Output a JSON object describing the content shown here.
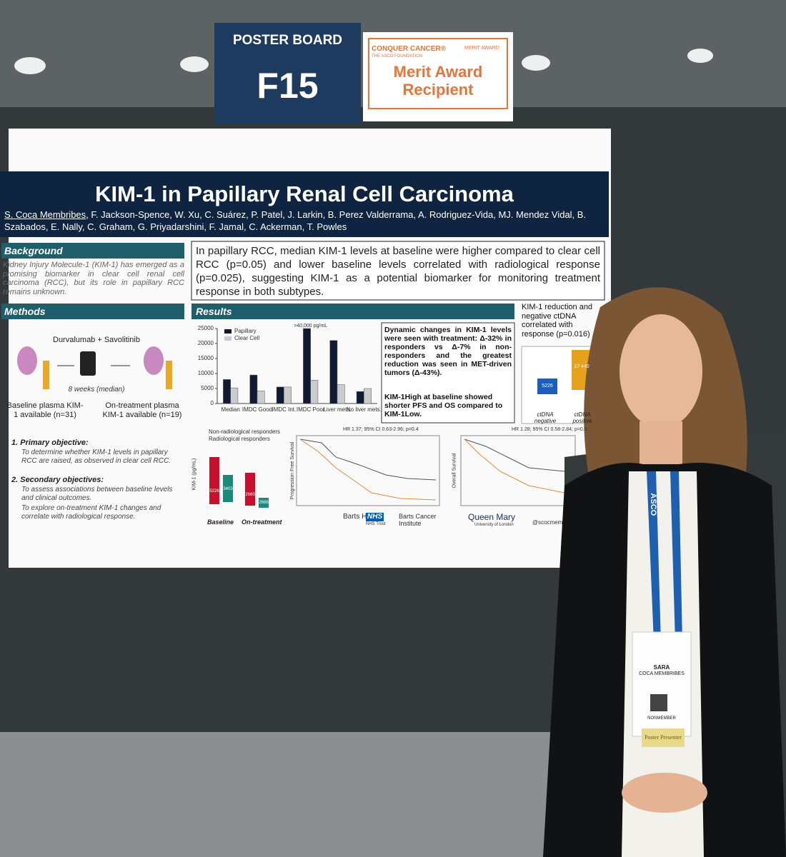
{
  "board": {
    "label": "POSTER BOARD",
    "id": "F15"
  },
  "award": {
    "org": "CONQUER CANCER®",
    "foundation": "THE ASCO FOUNDATION",
    "tag": "MERIT AWARD",
    "title": "Merit Award Recipient"
  },
  "poster": {
    "title": "KIM-1 in Papillary Renal Cell Carcinoma",
    "authors_lead": "S. Coca Membribes",
    "authors": ", F. Jackson-Spence, W. Xu, C. Suárez, P. Patel, J. Larkin, B. Perez Valderrama, A. Rodriguez-Vida, MJ. Mendez Vidal, B. Szabados, E. Nally, C. Graham, G. Priyadarshini, F. Jamal, C. Ackerman, T. Powles",
    "background": {
      "heading": "Background",
      "text": "Kidney Injury Molecule-1 (KIM-1) has emerged as a promising biomarker in clear cell renal cell carcinoma (RCC), but its role in papillary RCC remains unknown."
    },
    "summary": "In papillary RCC, median KIM-1 levels at baseline were higher compared to clear cell RCC (p=0.05) and lower baseline levels correlated with radiological response (p=0.025), suggesting KIM-1 as a potential biomarker for monitoring treatment response in both subtypes.",
    "methods": {
      "heading": "Methods",
      "drug": "Durvalumab + Savolitinib",
      "duration": "8 weeks (median)",
      "baseline": "Baseline plasma KIM-1 available (n=31)",
      "on_treatment": "On-treatment plasma KIM-1 available (n=19)",
      "primary_heading": "1. Primary objective:",
      "primary": "To determine whether KIM-1 levels in papillary RCC are raised, as observed in clear cell RCC.",
      "secondary_heading": "2. Secondary objectives:",
      "secondary": [
        "To assess associations between baseline levels and clinical outcomes.",
        "To explore on-treatment KIM-1 changes and correlate with radiological response."
      ]
    },
    "results": {
      "heading": "Results",
      "chart": {
        "type": "bar",
        "annotation": ">40,000 pg/mL",
        "categories": [
          "Median",
          "IMDC Good",
          "IMDC Int.",
          "IMDC Poor",
          "Liver mets.",
          "No liver mets."
        ],
        "series": [
          {
            "name": "Papillary",
            "color": "#111a33",
            "values": [
              8000,
              9500,
              5500,
              25000,
              21000,
              4000
            ]
          },
          {
            "name": "Clear Cell",
            "color": "#c9ccce",
            "values": [
              5200,
              4200,
              5500,
              7800,
              6300,
              5000
            ]
          }
        ],
        "ylim": [
          0,
          25000
        ],
        "yticks": [
          0,
          5000,
          10000,
          15000,
          20000,
          25000
        ]
      },
      "text1": "Dynamic changes in KIM-1 levels were seen with treatment: Δ-32% in responders vs Δ-7% in non-responders and the greatest reduction was seen in MET-driven tumors (Δ-43%).",
      "text2": "KIM-1High at baseline showed shorter PFS and OS compared to KIM-1Low.",
      "boxplot": {
        "legend": [
          "Non-radiological responders",
          "Radiological responders"
        ],
        "values": [
          "5226",
          "3403",
          "2660",
          "2686"
        ],
        "groups": [
          "Baseline",
          "On-treatment"
        ],
        "axis": "KIM-1 (pg/mL)"
      },
      "km": [
        {
          "hr": "HR 1.37; 95% CI 0.63-2.96; p=0.4",
          "axis": "Progression Free Survival"
        },
        {
          "hr": "HR 1.28; 95% CI 0.58-2.84; p=0.5",
          "axis": "Overall Survival"
        }
      ]
    },
    "side": {
      "text": "KIM-1 reduction and negative ctDNA correlated with response (p=0.016)",
      "values": [
        "5226",
        "17 440"
      ],
      "groups": [
        "ctDNA negative",
        "ctDNA positive"
      ]
    },
    "logos": {
      "barts": "Barts Health",
      "nhs": "NHS",
      "nhs_trust": "NHS Trust",
      "bci": "Barts Cancer Institute",
      "qm": "Queen Mary",
      "qm_sub": "University of London",
      "handle": "@scocmem"
    }
  },
  "badge": {
    "lanyard": "ASCO",
    "first": "SARA",
    "last": "COCA MEMBRIBES",
    "status": "NONMEMBER",
    "ribbon": "Poster Presenter"
  }
}
